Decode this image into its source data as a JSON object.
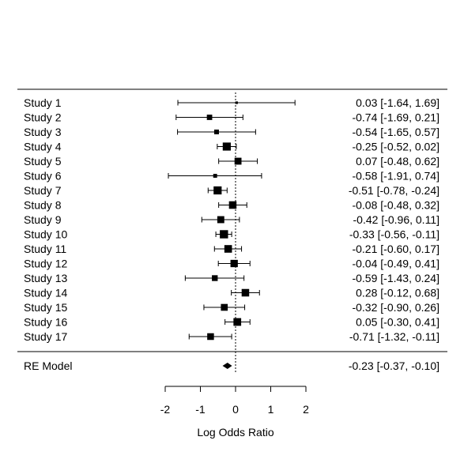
{
  "chart_data": {
    "type": "forest",
    "title": "",
    "xlabel": "Log Odds Ratio",
    "xlim": [
      -2,
      2
    ],
    "xticks": [
      -2,
      -1,
      0,
      1,
      2
    ],
    "reference_line": 0,
    "studies": [
      {
        "label": "Study 1",
        "estimate": 0.03,
        "ci_lower": -1.64,
        "ci_upper": 1.69,
        "ci_text": "0.03 [-1.64,  1.69]"
      },
      {
        "label": "Study 2",
        "estimate": -0.74,
        "ci_lower": -1.69,
        "ci_upper": 0.21,
        "ci_text": "-0.74 [-1.69,  0.21]"
      },
      {
        "label": "Study 3",
        "estimate": -0.54,
        "ci_lower": -1.65,
        "ci_upper": 0.57,
        "ci_text": "-0.54 [-1.65,  0.57]"
      },
      {
        "label": "Study 4",
        "estimate": -0.25,
        "ci_lower": -0.52,
        "ci_upper": 0.02,
        "ci_text": "-0.25 [-0.52,  0.02]"
      },
      {
        "label": "Study 5",
        "estimate": 0.07,
        "ci_lower": -0.48,
        "ci_upper": 0.62,
        "ci_text": "0.07 [-0.48,  0.62]"
      },
      {
        "label": "Study 6",
        "estimate": -0.58,
        "ci_lower": -1.91,
        "ci_upper": 0.74,
        "ci_text": "-0.58 [-1.91,  0.74]"
      },
      {
        "label": "Study 7",
        "estimate": -0.51,
        "ci_lower": -0.78,
        "ci_upper": -0.24,
        "ci_text": "-0.51 [-0.78, -0.24]"
      },
      {
        "label": "Study 8",
        "estimate": -0.08,
        "ci_lower": -0.48,
        "ci_upper": 0.32,
        "ci_text": "-0.08 [-0.48,  0.32]"
      },
      {
        "label": "Study 9",
        "estimate": -0.42,
        "ci_lower": -0.96,
        "ci_upper": 0.11,
        "ci_text": "-0.42 [-0.96,  0.11]"
      },
      {
        "label": "Study 10",
        "estimate": -0.33,
        "ci_lower": -0.56,
        "ci_upper": -0.11,
        "ci_text": "-0.33 [-0.56, -0.11]"
      },
      {
        "label": "Study 11",
        "estimate": -0.21,
        "ci_lower": -0.6,
        "ci_upper": 0.17,
        "ci_text": "-0.21 [-0.60,  0.17]"
      },
      {
        "label": "Study 12",
        "estimate": -0.04,
        "ci_lower": -0.49,
        "ci_upper": 0.41,
        "ci_text": "-0.04 [-0.49,  0.41]"
      },
      {
        "label": "Study 13",
        "estimate": -0.59,
        "ci_lower": -1.43,
        "ci_upper": 0.24,
        "ci_text": "-0.59 [-1.43,  0.24]"
      },
      {
        "label": "Study 14",
        "estimate": 0.28,
        "ci_lower": -0.12,
        "ci_upper": 0.68,
        "ci_text": "0.28 [-0.12,  0.68]"
      },
      {
        "label": "Study 15",
        "estimate": -0.32,
        "ci_lower": -0.9,
        "ci_upper": 0.26,
        "ci_text": "-0.32 [-0.90,  0.26]"
      },
      {
        "label": "Study 16",
        "estimate": 0.05,
        "ci_lower": -0.3,
        "ci_upper": 0.41,
        "ci_text": "0.05 [-0.30,  0.41]"
      },
      {
        "label": "Study 17",
        "estimate": -0.71,
        "ci_lower": -1.32,
        "ci_upper": -0.11,
        "ci_text": "-0.71 [-1.32, -0.11]"
      }
    ],
    "summary": {
      "label": "RE Model",
      "estimate": -0.23,
      "ci_lower": -0.37,
      "ci_upper": -0.1,
      "ci_text": "-0.23 [-0.37, -0.10]"
    },
    "colors": {
      "ink": "#000000",
      "background": "#ffffff"
    }
  }
}
